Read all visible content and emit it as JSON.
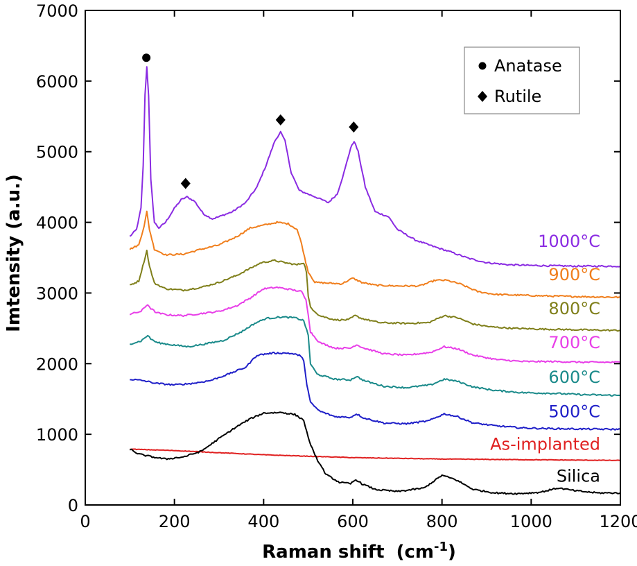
{
  "chart_data": {
    "type": "line",
    "xlabel": "Raman shift",
    "xlabel_unit_base": "(cm",
    "xlabel_unit_sup": "-1",
    "xlabel_unit_end": ")",
    "ylabel": "Imtensity (a.u.)",
    "xlim": [
      0,
      1200
    ],
    "ylim": [
      0,
      7000
    ],
    "x_ticks": [
      0,
      200,
      400,
      600,
      800,
      1000,
      1200
    ],
    "y_ticks": [
      0,
      1000,
      2000,
      3000,
      4000,
      5000,
      6000,
      7000
    ],
    "x_tick_labels": [
      "0",
      "200",
      "400",
      "600",
      "800",
      "1000",
      "1200"
    ],
    "y_tick_labels": [
      "0",
      "1000",
      "2000",
      "3000",
      "4000",
      "5000",
      "6000",
      "7000"
    ],
    "grid": false,
    "legend": {
      "position": "top-right",
      "entries": [
        {
          "marker": "circle",
          "label": "Anatase"
        },
        {
          "marker": "diamond",
          "label": "Rutile"
        }
      ]
    },
    "series": [
      {
        "name": "1000°C",
        "color": "#8a2be2",
        "points": [
          [
            100,
            3800
          ],
          [
            115,
            3900
          ],
          [
            125,
            4200
          ],
          [
            130,
            4800
          ],
          [
            134,
            5800
          ],
          [
            138,
            6200
          ],
          [
            142,
            5800
          ],
          [
            147,
            4600
          ],
          [
            155,
            4000
          ],
          [
            165,
            3920
          ],
          [
            180,
            4000
          ],
          [
            200,
            4200
          ],
          [
            215,
            4320
          ],
          [
            228,
            4360
          ],
          [
            245,
            4300
          ],
          [
            265,
            4120
          ],
          [
            285,
            4050
          ],
          [
            300,
            4080
          ],
          [
            330,
            4150
          ],
          [
            360,
            4280
          ],
          [
            385,
            4500
          ],
          [
            405,
            4800
          ],
          [
            425,
            5150
          ],
          [
            438,
            5280
          ],
          [
            448,
            5150
          ],
          [
            462,
            4700
          ],
          [
            480,
            4450
          ],
          [
            500,
            4400
          ],
          [
            520,
            4350
          ],
          [
            545,
            4280
          ],
          [
            565,
            4400
          ],
          [
            580,
            4700
          ],
          [
            595,
            5050
          ],
          [
            603,
            5150
          ],
          [
            612,
            5000
          ],
          [
            628,
            4500
          ],
          [
            650,
            4150
          ],
          [
            680,
            4080
          ],
          [
            700,
            3900
          ],
          [
            740,
            3750
          ],
          [
            780,
            3660
          ],
          [
            820,
            3580
          ],
          [
            860,
            3490
          ],
          [
            900,
            3430
          ],
          [
            950,
            3400
          ],
          [
            1000,
            3390
          ],
          [
            1100,
            3380
          ],
          [
            1200,
            3380
          ]
        ]
      },
      {
        "name": "900°C",
        "color": "#f07e1c",
        "points": [
          [
            100,
            3620
          ],
          [
            120,
            3680
          ],
          [
            132,
            3950
          ],
          [
            138,
            4150
          ],
          [
            144,
            3900
          ],
          [
            155,
            3620
          ],
          [
            180,
            3540
          ],
          [
            220,
            3550
          ],
          [
            260,
            3620
          ],
          [
            300,
            3680
          ],
          [
            340,
            3800
          ],
          [
            370,
            3920
          ],
          [
            400,
            3960
          ],
          [
            430,
            4000
          ],
          [
            455,
            3980
          ],
          [
            475,
            3900
          ],
          [
            485,
            3700
          ],
          [
            492,
            3500
          ],
          [
            500,
            3300
          ],
          [
            515,
            3150
          ],
          [
            545,
            3140
          ],
          [
            575,
            3130
          ],
          [
            600,
            3210
          ],
          [
            620,
            3150
          ],
          [
            650,
            3110
          ],
          [
            700,
            3100
          ],
          [
            750,
            3100
          ],
          [
            785,
            3180
          ],
          [
            810,
            3180
          ],
          [
            840,
            3130
          ],
          [
            880,
            3020
          ],
          [
            920,
            2980
          ],
          [
            970,
            2970
          ],
          [
            1020,
            2960
          ],
          [
            1100,
            2950
          ],
          [
            1200,
            2940
          ]
        ]
      },
      {
        "name": "800°C",
        "color": "#7f7f1a",
        "points": [
          [
            100,
            3110
          ],
          [
            120,
            3170
          ],
          [
            132,
            3450
          ],
          [
            138,
            3600
          ],
          [
            144,
            3380
          ],
          [
            155,
            3140
          ],
          [
            180,
            3060
          ],
          [
            220,
            3040
          ],
          [
            260,
            3080
          ],
          [
            300,
            3150
          ],
          [
            340,
            3250
          ],
          [
            370,
            3350
          ],
          [
            395,
            3430
          ],
          [
            425,
            3460
          ],
          [
            455,
            3420
          ],
          [
            475,
            3400
          ],
          [
            490,
            3430
          ],
          [
            496,
            3300
          ],
          [
            500,
            2950
          ],
          [
            505,
            2800
          ],
          [
            525,
            2680
          ],
          [
            560,
            2620
          ],
          [
            590,
            2620
          ],
          [
            605,
            2680
          ],
          [
            620,
            2640
          ],
          [
            660,
            2580
          ],
          [
            720,
            2570
          ],
          [
            770,
            2580
          ],
          [
            805,
            2680
          ],
          [
            835,
            2650
          ],
          [
            870,
            2560
          ],
          [
            910,
            2520
          ],
          [
            960,
            2500
          ],
          [
            1020,
            2490
          ],
          [
            1100,
            2480
          ],
          [
            1200,
            2470
          ]
        ]
      },
      {
        "name": "700°C",
        "color": "#e83fe8",
        "points": [
          [
            100,
            2700
          ],
          [
            125,
            2740
          ],
          [
            140,
            2840
          ],
          [
            147,
            2780
          ],
          [
            160,
            2720
          ],
          [
            185,
            2690
          ],
          [
            220,
            2680
          ],
          [
            260,
            2710
          ],
          [
            300,
            2740
          ],
          [
            340,
            2820
          ],
          [
            370,
            2930
          ],
          [
            400,
            3060
          ],
          [
            430,
            3080
          ],
          [
            460,
            3050
          ],
          [
            485,
            3020
          ],
          [
            495,
            2900
          ],
          [
            500,
            2700
          ],
          [
            505,
            2450
          ],
          [
            525,
            2300
          ],
          [
            560,
            2220
          ],
          [
            595,
            2220
          ],
          [
            608,
            2270
          ],
          [
            625,
            2220
          ],
          [
            670,
            2140
          ],
          [
            720,
            2120
          ],
          [
            775,
            2160
          ],
          [
            805,
            2240
          ],
          [
            835,
            2210
          ],
          [
            870,
            2120
          ],
          [
            920,
            2060
          ],
          [
            980,
            2030
          ],
          [
            1050,
            2030
          ],
          [
            1120,
            2020
          ],
          [
            1200,
            2020
          ]
        ]
      },
      {
        "name": "600°C",
        "color": "#1a8a8a",
        "points": [
          [
            100,
            2280
          ],
          [
            125,
            2320
          ],
          [
            140,
            2400
          ],
          [
            147,
            2350
          ],
          [
            160,
            2300
          ],
          [
            190,
            2270
          ],
          [
            230,
            2240
          ],
          [
            270,
            2280
          ],
          [
            310,
            2330
          ],
          [
            350,
            2450
          ],
          [
            380,
            2570
          ],
          [
            405,
            2640
          ],
          [
            440,
            2660
          ],
          [
            470,
            2650
          ],
          [
            490,
            2610
          ],
          [
            500,
            2400
          ],
          [
            505,
            2000
          ],
          [
            520,
            1850
          ],
          [
            560,
            1780
          ],
          [
            595,
            1770
          ],
          [
            608,
            1820
          ],
          [
            625,
            1760
          ],
          [
            670,
            1680
          ],
          [
            720,
            1660
          ],
          [
            775,
            1700
          ],
          [
            805,
            1780
          ],
          [
            835,
            1750
          ],
          [
            870,
            1670
          ],
          [
            920,
            1620
          ],
          [
            980,
            1590
          ],
          [
            1050,
            1580
          ],
          [
            1120,
            1560
          ],
          [
            1200,
            1550
          ]
        ]
      },
      {
        "name": "500°C",
        "color": "#1f1fc8",
        "points": [
          [
            100,
            1780
          ],
          [
            130,
            1760
          ],
          [
            160,
            1720
          ],
          [
            200,
            1700
          ],
          [
            240,
            1720
          ],
          [
            280,
            1760
          ],
          [
            320,
            1850
          ],
          [
            360,
            1950
          ],
          [
            385,
            2120
          ],
          [
            420,
            2150
          ],
          [
            455,
            2150
          ],
          [
            480,
            2120
          ],
          [
            490,
            2050
          ],
          [
            497,
            1700
          ],
          [
            505,
            1450
          ],
          [
            525,
            1330
          ],
          [
            560,
            1250
          ],
          [
            595,
            1240
          ],
          [
            608,
            1290
          ],
          [
            625,
            1230
          ],
          [
            670,
            1160
          ],
          [
            720,
            1150
          ],
          [
            770,
            1190
          ],
          [
            805,
            1290
          ],
          [
            835,
            1250
          ],
          [
            870,
            1160
          ],
          [
            920,
            1120
          ],
          [
            980,
            1090
          ],
          [
            1050,
            1080
          ],
          [
            1120,
            1075
          ],
          [
            1200,
            1070
          ]
        ]
      },
      {
        "name": "As-implanted",
        "color": "#e02020",
        "points": [
          [
            100,
            790
          ],
          [
            200,
            770
          ],
          [
            300,
            740
          ],
          [
            400,
            710
          ],
          [
            500,
            690
          ],
          [
            600,
            670
          ],
          [
            700,
            660
          ],
          [
            800,
            650
          ],
          [
            900,
            645
          ],
          [
            1000,
            640
          ],
          [
            1100,
            635
          ],
          [
            1200,
            630
          ]
        ]
      },
      {
        "name": "Silica",
        "color": "#000000",
        "points": [
          [
            100,
            790
          ],
          [
            120,
            720
          ],
          [
            150,
            680
          ],
          [
            180,
            650
          ],
          [
            220,
            680
          ],
          [
            260,
            760
          ],
          [
            300,
            940
          ],
          [
            340,
            1110
          ],
          [
            370,
            1220
          ],
          [
            400,
            1300
          ],
          [
            440,
            1310
          ],
          [
            470,
            1280
          ],
          [
            490,
            1200
          ],
          [
            500,
            950
          ],
          [
            515,
            700
          ],
          [
            540,
            430
          ],
          [
            570,
            320
          ],
          [
            595,
            300
          ],
          [
            607,
            360
          ],
          [
            620,
            300
          ],
          [
            650,
            220
          ],
          [
            700,
            190
          ],
          [
            760,
            240
          ],
          [
            800,
            420
          ],
          [
            830,
            360
          ],
          [
            870,
            220
          ],
          [
            920,
            170
          ],
          [
            970,
            160
          ],
          [
            1020,
            180
          ],
          [
            1060,
            240
          ],
          [
            1100,
            200
          ],
          [
            1150,
            170
          ],
          [
            1200,
            170
          ]
        ]
      }
    ],
    "series_labels": [
      {
        "name": "1000°C",
        "y": 3650
      },
      {
        "name": "900°C",
        "y": 3180
      },
      {
        "name": "800°C",
        "y": 2700
      },
      {
        "name": "700°C",
        "y": 2220
      },
      {
        "name": "600°C",
        "y": 1730
      },
      {
        "name": "500°C",
        "y": 1240
      },
      {
        "name": "As-implanted",
        "y": 780
      },
      {
        "name": "Silica",
        "y": 330
      }
    ],
    "annotations": [
      {
        "marker": "circle",
        "x": 137,
        "y": 6330,
        "label": "Anatase"
      },
      {
        "marker": "diamond",
        "x": 225,
        "y": 4550,
        "label": "Rutile"
      },
      {
        "marker": "diamond",
        "x": 438,
        "y": 5450,
        "label": "Rutile"
      },
      {
        "marker": "diamond",
        "x": 602,
        "y": 5350,
        "label": "Rutile"
      }
    ]
  }
}
